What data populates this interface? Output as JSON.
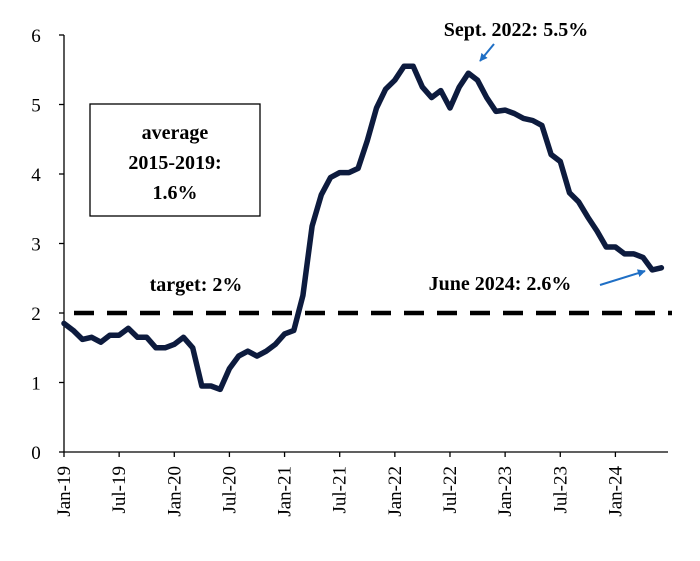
{
  "chart_data": {
    "type": "line",
    "title": "",
    "xlabel": "",
    "ylabel": "",
    "ylim": [
      0,
      6
    ],
    "yticks": [
      "0",
      "1",
      "2",
      "3",
      "4",
      "5",
      "6"
    ],
    "xticks": [
      "Jan-19",
      "Jul-19",
      "Jan-20",
      "Jul-20",
      "Jan-21",
      "Jul-21",
      "Jan-22",
      "Jul-22",
      "Jan-23",
      "Jul-23",
      "Jan-24"
    ],
    "grid": false,
    "legend": "none",
    "series": [
      {
        "color": "#0d1b3e",
        "x": [
          "2019-01",
          "2019-02",
          "2019-03",
          "2019-04",
          "2019-05",
          "2019-06",
          "2019-07",
          "2019-08",
          "2019-09",
          "2019-10",
          "2019-11",
          "2019-12",
          "2020-01",
          "2020-02",
          "2020-03",
          "2020-04",
          "2020-05",
          "2020-06",
          "2020-07",
          "2020-08",
          "2020-09",
          "2020-10",
          "2020-11",
          "2020-12",
          "2021-01",
          "2021-02",
          "2021-03",
          "2021-04",
          "2021-05",
          "2021-06",
          "2021-07",
          "2021-08",
          "2021-09",
          "2021-10",
          "2021-11",
          "2021-12",
          "2022-01",
          "2022-02",
          "2022-03",
          "2022-04",
          "2022-05",
          "2022-06",
          "2022-07",
          "2022-08",
          "2022-09",
          "2022-10",
          "2022-11",
          "2022-12",
          "2023-01",
          "2023-02",
          "2023-03",
          "2023-04",
          "2023-05",
          "2023-06",
          "2023-07",
          "2023-08",
          "2023-09",
          "2023-10",
          "2023-11",
          "2023-12",
          "2024-01",
          "2024-02",
          "2024-03",
          "2024-04",
          "2024-05",
          "2024-06"
        ],
        "values": [
          1.85,
          1.75,
          1.62,
          1.65,
          1.58,
          1.68,
          1.68,
          1.78,
          1.65,
          1.65,
          1.5,
          1.5,
          1.55,
          1.65,
          1.5,
          0.95,
          0.95,
          0.9,
          1.2,
          1.38,
          1.45,
          1.38,
          1.45,
          1.55,
          1.7,
          1.75,
          2.25,
          3.25,
          3.7,
          3.95,
          4.02,
          4.02,
          4.08,
          4.48,
          4.95,
          5.22,
          5.35,
          5.55,
          5.55,
          5.25,
          5.1,
          5.2,
          4.95,
          5.25,
          5.45,
          5.35,
          5.1,
          4.9,
          4.92,
          4.87,
          4.8,
          4.77,
          4.7,
          4.28,
          4.18,
          3.73,
          3.6,
          3.38,
          3.18,
          2.95,
          2.95,
          2.85,
          2.85,
          2.8,
          2.62,
          2.65
        ]
      }
    ],
    "reference_line": {
      "label": "target: 2%",
      "value": 2
    },
    "annotations": {
      "average_box": [
        "average",
        "2015-2019:",
        "1.6%"
      ],
      "peak": {
        "text": "Sept. 2022: 5.5%",
        "x": "2022-09",
        "y": 5.5
      },
      "latest": {
        "text": "June 2024: 2.6%",
        "x": "2024-06",
        "y": 2.65
      }
    },
    "arrow_color": "#1f6fc5"
  }
}
